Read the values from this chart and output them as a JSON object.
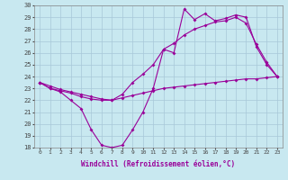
{
  "xlabel": "Windchill (Refroidissement éolien,°C)",
  "hours": [
    0,
    1,
    2,
    3,
    4,
    5,
    6,
    7,
    8,
    9,
    10,
    11,
    12,
    13,
    14,
    15,
    16,
    17,
    18,
    19,
    20,
    21,
    22,
    23
  ],
  "line1": [
    23.5,
    23.0,
    22.7,
    22.0,
    21.3,
    19.5,
    18.2,
    18.0,
    18.2,
    19.5,
    21.0,
    23.0,
    26.3,
    26.0,
    29.7,
    28.8,
    29.3,
    28.7,
    28.9,
    29.2,
    29.0,
    26.5,
    25.0,
    24.0
  ],
  "line2": [
    23.5,
    23.0,
    22.8,
    22.6,
    22.3,
    22.1,
    22.0,
    22.0,
    22.2,
    22.4,
    22.6,
    22.8,
    23.0,
    23.1,
    23.2,
    23.3,
    23.4,
    23.5,
    23.6,
    23.7,
    23.8,
    23.8,
    23.9,
    24.0
  ],
  "line3": [
    23.5,
    23.2,
    22.9,
    22.7,
    22.5,
    22.3,
    22.1,
    22.0,
    22.5,
    23.5,
    24.2,
    25.0,
    26.3,
    26.8,
    27.5,
    28.0,
    28.3,
    28.6,
    28.7,
    29.0,
    28.5,
    26.7,
    25.2,
    24.0
  ],
  "line_color": "#990099",
  "bg_color": "#c8e8f0",
  "grid_color": "#a8c8d8",
  "ylim": [
    18,
    30
  ],
  "yticks": [
    18,
    19,
    20,
    21,
    22,
    23,
    24,
    25,
    26,
    27,
    28,
    29,
    30
  ],
  "marker": "D",
  "marker_size": 2.0,
  "line_width": 0.8
}
